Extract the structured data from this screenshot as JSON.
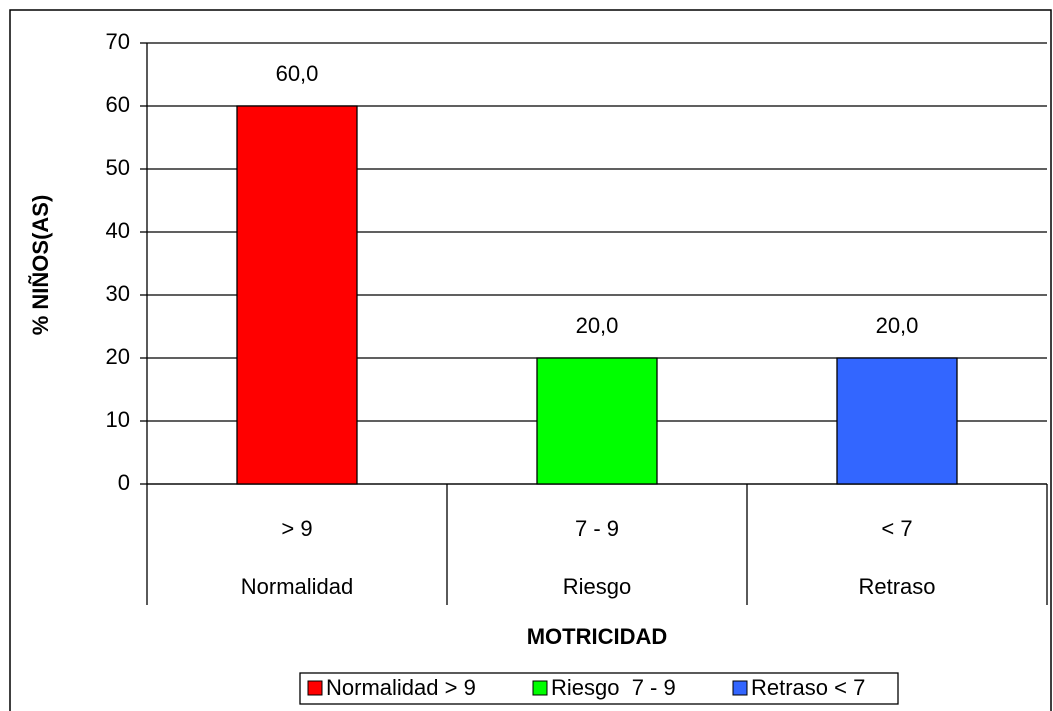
{
  "chart_data": {
    "type": "bar",
    "categories": [
      "> 9",
      "7 - 9",
      "< 7"
    ],
    "category_groups": [
      "Normalidad",
      "Riesgo",
      "Retraso"
    ],
    "values": [
      60,
      20,
      20
    ],
    "value_labels": [
      "60,0",
      "20,0",
      "20,0"
    ],
    "colors": [
      "#ff0000",
      "#00ff00",
      "#3366ff"
    ],
    "legend": [
      "Normalidad > 9",
      "Riesgo  7 - 9",
      "Retraso < 7"
    ],
    "xlabel": "MOTRICIDAD",
    "ylabel": "% NIÑOS(AS)",
    "ylim": [
      0,
      70
    ],
    "yticks": [
      0,
      10,
      20,
      30,
      40,
      50,
      60,
      70
    ],
    "grid": true
  }
}
